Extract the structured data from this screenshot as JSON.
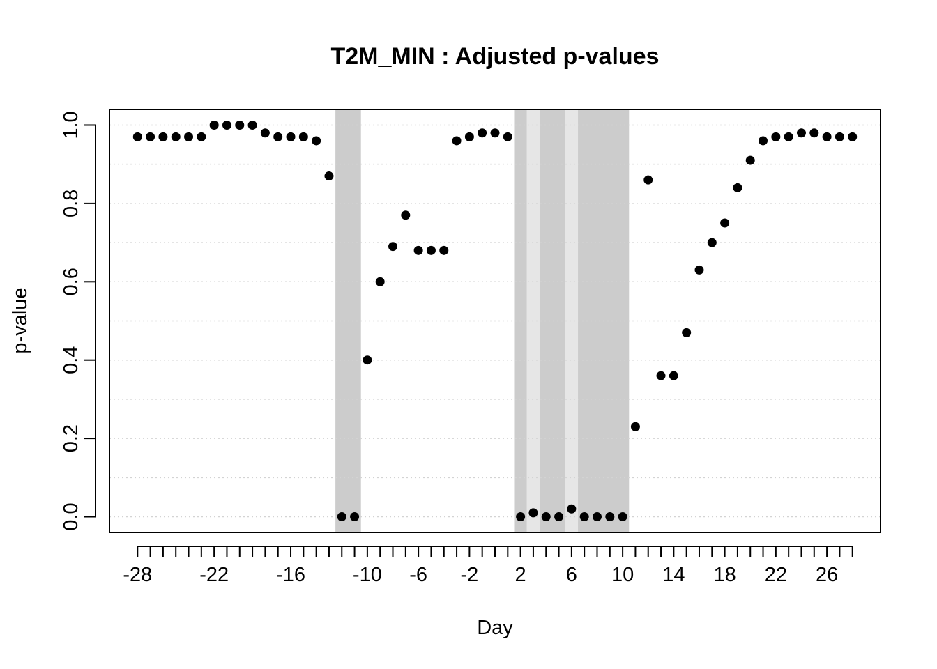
{
  "chart_data": {
    "type": "scatter",
    "title": "T2M_MIN : Adjusted p-values",
    "xlabel": "Day",
    "ylabel": "p-value",
    "xlim": [
      -30.2,
      30.2
    ],
    "ylim": [
      -0.04,
      1.04
    ],
    "grid": true,
    "x_ticks": [
      -28,
      -22,
      -16,
      -10,
      -6,
      -2,
      2,
      6,
      10,
      14,
      18,
      22,
      26
    ],
    "x_minor_ticks": [
      -27,
      -26,
      -25,
      -24,
      -23,
      -21,
      -20,
      -19,
      -18,
      -17,
      -15,
      -14,
      -13,
      -12,
      -11,
      -9,
      -8,
      -7,
      -5,
      -4,
      -3,
      -1,
      0,
      1,
      3,
      4,
      5,
      7,
      8,
      9,
      11,
      12,
      13,
      15,
      16,
      17,
      19,
      20,
      21,
      23,
      24,
      25,
      27,
      28
    ],
    "y_ticks": [
      0.0,
      0.2,
      0.4,
      0.6,
      0.8,
      1.0
    ],
    "y_tick_labels": [
      "0.0",
      "0.2",
      "0.4",
      "0.6",
      "0.8",
      "1.0"
    ],
    "y_grid": [
      0.0,
      0.1,
      0.2,
      0.3,
      0.4,
      0.5,
      0.6,
      0.7,
      0.8,
      0.9,
      1.0
    ],
    "shaded_regions": [
      {
        "start": -12.5,
        "end": -10.5,
        "color": "#cccccc"
      },
      {
        "start": 1.5,
        "end": 2.5,
        "color": "#cccccc"
      },
      {
        "start": 2.5,
        "end": 3.5,
        "color": "#e6e6e6"
      },
      {
        "start": 3.5,
        "end": 5.5,
        "color": "#cccccc"
      },
      {
        "start": 5.5,
        "end": 6.5,
        "color": "#e6e6e6"
      },
      {
        "start": 6.5,
        "end": 10.5,
        "color": "#cccccc"
      }
    ],
    "series": [
      {
        "name": "Adjusted p-values",
        "color": "#000000",
        "x": [
          -28,
          -27,
          -26,
          -25,
          -24,
          -23,
          -22,
          -21,
          -20,
          -19,
          -18,
          -17,
          -16,
          -15,
          -14,
          -13,
          -12,
          -11,
          -10,
          -9,
          -8,
          -7,
          -6,
          -5,
          -4,
          -3,
          -2,
          -1,
          0,
          1,
          2,
          3,
          4,
          5,
          6,
          7,
          8,
          9,
          10,
          11,
          12,
          13,
          14,
          15,
          16,
          17,
          18,
          19,
          20,
          21,
          22,
          23,
          24,
          25,
          26,
          27,
          28
        ],
        "y": [
          0.97,
          0.97,
          0.97,
          0.97,
          0.97,
          0.97,
          1.0,
          1.0,
          1.0,
          1.0,
          0.98,
          0.97,
          0.97,
          0.97,
          0.96,
          0.87,
          0.0,
          0.0,
          0.4,
          0.6,
          0.69,
          0.77,
          0.68,
          0.68,
          0.68,
          0.96,
          0.97,
          0.98,
          0.98,
          0.97,
          0.0,
          0.01,
          0.0,
          0.0,
          0.02,
          0.0,
          0.0,
          0.0,
          0.0,
          0.23,
          0.86,
          0.36,
          0.36,
          0.47,
          0.63,
          0.7,
          0.75,
          0.84,
          0.91,
          0.96,
          0.97,
          0.97,
          0.98,
          0.98,
          0.97,
          0.97,
          0.97
        ]
      }
    ]
  }
}
